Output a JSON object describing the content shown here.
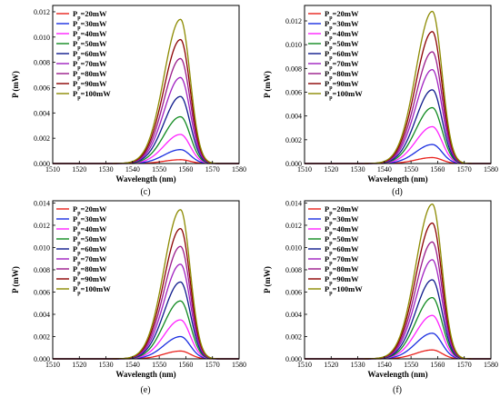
{
  "figure": {
    "legend_placement": "top-left",
    "legend_labels": [
      "P_p=20mW",
      "P_p=30mW",
      "P_p=40mW",
      "P_p=50mW",
      "P_p=60mW",
      "P_p=70mW",
      "P_p=80mW",
      "P_p=90mW",
      "P_p=100mW"
    ],
    "colors": [
      "#e8211c",
      "#1a2ee0",
      "#ff22ff",
      "#0f8a1f",
      "#0d1a8c",
      "#a020c0",
      "#9a1a8a",
      "#8b0000",
      "#8c8a00"
    ]
  },
  "chart_data": [
    {
      "type": "line",
      "caption": "",
      "xlabel": "Wavelength (nm)",
      "ylabel": "P (mW)",
      "xlim": [
        1510,
        1580
      ],
      "ylim": [
        0,
        0.0125
      ],
      "xticks": [
        1510,
        1520,
        1530,
        1540,
        1550,
        1560,
        1570,
        1580
      ],
      "yticks": [
        0.0,
        0.002,
        0.004,
        0.006,
        0.008,
        0.01,
        0.012
      ],
      "peak_x": 1558,
      "series": [
        {
          "name": "P_p=20mW",
          "peak": 0.0003
        },
        {
          "name": "P_p=30mW",
          "peak": 0.0011
        },
        {
          "name": "P_p=40mW",
          "peak": 0.0023
        },
        {
          "name": "P_p=50mW",
          "peak": 0.0037
        },
        {
          "name": "P_p=60mW",
          "peak": 0.0053
        },
        {
          "name": "P_p=70mW",
          "peak": 0.0068
        },
        {
          "name": "P_p=80mW",
          "peak": 0.0083
        },
        {
          "name": "P_p=90mW",
          "peak": 0.0098
        },
        {
          "name": "P_p=100mW",
          "peak": 0.0114
        }
      ]
    },
    {
      "type": "line",
      "caption": "",
      "xlabel": "Wavelength (nm)",
      "ylabel": "P (mW)",
      "xlim": [
        1510,
        1580
      ],
      "ylim": [
        0,
        0.0133
      ],
      "xticks": [
        1510,
        1520,
        1530,
        1540,
        1550,
        1560,
        1570,
        1580
      ],
      "yticks": [
        0.0,
        0.002,
        0.004,
        0.006,
        0.008,
        0.01,
        0.012
      ],
      "peak_x": 1558,
      "series": [
        {
          "name": "P_p=20mW",
          "peak": 0.0005
        },
        {
          "name": "P_p=30mW",
          "peak": 0.0016
        },
        {
          "name": "P_p=40mW",
          "peak": 0.0031
        },
        {
          "name": "P_p=50mW",
          "peak": 0.0047
        },
        {
          "name": "P_p=60mW",
          "peak": 0.0062
        },
        {
          "name": "P_p=70mW",
          "peak": 0.0079
        },
        {
          "name": "P_p=80mW",
          "peak": 0.0094
        },
        {
          "name": "P_p=90mW",
          "peak": 0.0111
        },
        {
          "name": "P_p=100mW",
          "peak": 0.0128
        }
      ]
    },
    {
      "type": "line",
      "caption": "(e)",
      "xlabel": "Wavelength (nm)",
      "ylabel": "P (mW)",
      "xlim": [
        1510,
        1580
      ],
      "ylim": [
        0,
        0.0142
      ],
      "xticks": [
        1510,
        1520,
        1530,
        1540,
        1550,
        1560,
        1570,
        1580
      ],
      "yticks": [
        0.0,
        0.002,
        0.004,
        0.006,
        0.008,
        0.01,
        0.012,
        0.014
      ],
      "peak_x": 1558,
      "series": [
        {
          "name": "P_p=20mW",
          "peak": 0.0007
        },
        {
          "name": "P_p=30mW",
          "peak": 0.002
        },
        {
          "name": "P_p=40mW",
          "peak": 0.0035
        },
        {
          "name": "P_p=50mW",
          "peak": 0.0052
        },
        {
          "name": "P_p=60mW",
          "peak": 0.0069
        },
        {
          "name": "P_p=70mW",
          "peak": 0.0085
        },
        {
          "name": "P_p=80mW",
          "peak": 0.0101
        },
        {
          "name": "P_p=90mW",
          "peak": 0.0117
        },
        {
          "name": "P_p=100mW",
          "peak": 0.0134
        }
      ]
    },
    {
      "type": "line",
      "caption": "(f)",
      "xlabel": "Wavelength (nm)",
      "ylabel": "P (mW)",
      "xlim": [
        1510,
        1580
      ],
      "ylim": [
        0,
        0.0142
      ],
      "xticks": [
        1510,
        1520,
        1530,
        1540,
        1550,
        1560,
        1570,
        1580
      ],
      "yticks": [
        0.0,
        0.002,
        0.004,
        0.006,
        0.008,
        0.01,
        0.012,
        0.014
      ],
      "peak_x": 1558,
      "series": [
        {
          "name": "P_p=20mW",
          "peak": 0.0008
        },
        {
          "name": "P_p=30mW",
          "peak": 0.0023
        },
        {
          "name": "P_p=40mW",
          "peak": 0.0039
        },
        {
          "name": "P_p=50mW",
          "peak": 0.0055
        },
        {
          "name": "P_p=60mW",
          "peak": 0.0071
        },
        {
          "name": "P_p=70mW",
          "peak": 0.0089
        },
        {
          "name": "P_p=80mW",
          "peak": 0.0105
        },
        {
          "name": "P_p=90mW",
          "peak": 0.0122
        },
        {
          "name": "P_p=100mW",
          "peak": 0.0139
        }
      ]
    }
  ],
  "top_captions": [
    "(c)",
    "(d)"
  ]
}
